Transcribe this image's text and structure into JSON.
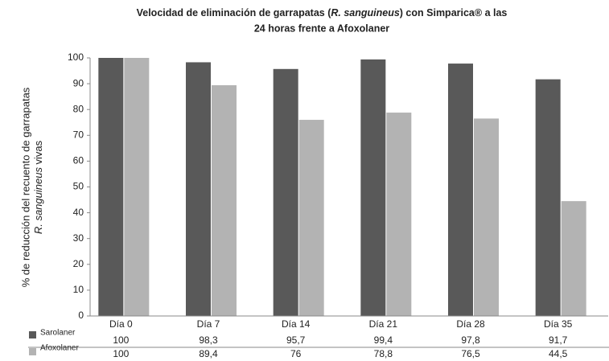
{
  "chart_data": {
    "type": "bar",
    "title": [
      "Velocidad de eliminación de garrapatas (",
      "R. sanguineus",
      ") con Simparica® a las",
      "24 horas frente a Afoxolaner"
    ],
    "y_label": [
      "% de reducción del recuento de garrapatas",
      "R. sanguineus",
      " vivas"
    ],
    "categories": [
      "Día 0",
      "Día 7",
      "Día 14",
      "Día 21",
      "Día 28",
      "Día 35"
    ],
    "series": [
      {
        "name": "Sarolaner",
        "color": "#595959",
        "values": [
          100,
          98.3,
          95.7,
          99.4,
          97.8,
          91.7
        ],
        "value_labels": [
          "100",
          "98,3",
          "95,7",
          "99,4",
          "97,8",
          "91,7"
        ]
      },
      {
        "name": "Afoxolaner",
        "color": "#b3b3b3",
        "values": [
          100,
          89.4,
          76,
          78.8,
          76.5,
          44.5
        ],
        "value_labels": [
          "100",
          "89,4",
          "76",
          "78,8",
          "76,5",
          "44,5"
        ]
      }
    ],
    "ylim": [
      0,
      100
    ],
    "yticks": [
      0,
      10,
      20,
      30,
      40,
      50,
      60,
      70,
      80,
      90,
      100
    ]
  }
}
